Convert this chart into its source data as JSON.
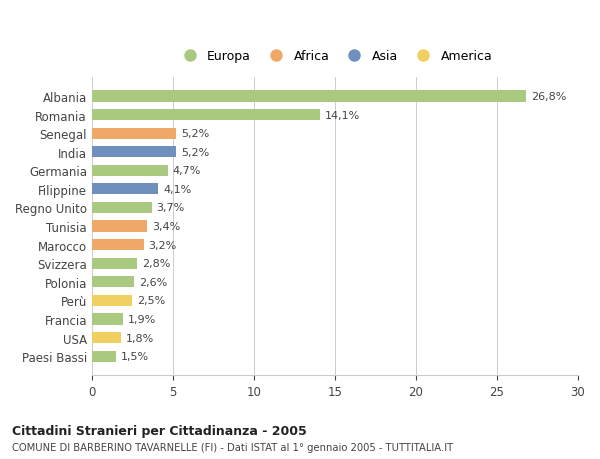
{
  "categories": [
    "Albania",
    "Romania",
    "Senegal",
    "India",
    "Germania",
    "Filippine",
    "Regno Unito",
    "Tunisia",
    "Marocco",
    "Svizzera",
    "Polonia",
    "Perù",
    "Francia",
    "USA",
    "Paesi Bassi"
  ],
  "values": [
    26.8,
    14.1,
    5.2,
    5.2,
    4.7,
    4.1,
    3.7,
    3.4,
    3.2,
    2.8,
    2.6,
    2.5,
    1.9,
    1.8,
    1.5
  ],
  "labels": [
    "26,8%",
    "14,1%",
    "5,2%",
    "5,2%",
    "4,7%",
    "4,1%",
    "3,7%",
    "3,4%",
    "3,2%",
    "2,8%",
    "2,6%",
    "2,5%",
    "1,9%",
    "1,8%",
    "1,5%"
  ],
  "continent": [
    "Europa",
    "Europa",
    "Africa",
    "Asia",
    "Europa",
    "Asia",
    "Europa",
    "Africa",
    "Africa",
    "Europa",
    "Europa",
    "America",
    "Europa",
    "America",
    "Europa"
  ],
  "colors": {
    "Europa": "#a8c97f",
    "Africa": "#f0a868",
    "Asia": "#6f8fbf",
    "America": "#f0d060"
  },
  "xlim": [
    0,
    30
  ],
  "xticks": [
    0,
    5,
    10,
    15,
    20,
    25,
    30
  ],
  "title": "Cittadini Stranieri per Cittadinanza - 2005",
  "subtitle": "COMUNE DI BARBERINO TAVARNELLE (FI) - Dati ISTAT al 1° gennaio 2005 - TUTTITALIA.IT",
  "background_color": "#ffffff",
  "grid_color": "#cccccc",
  "bar_height": 0.6,
  "legend_order": [
    "Europa",
    "Africa",
    "Asia",
    "America"
  ]
}
